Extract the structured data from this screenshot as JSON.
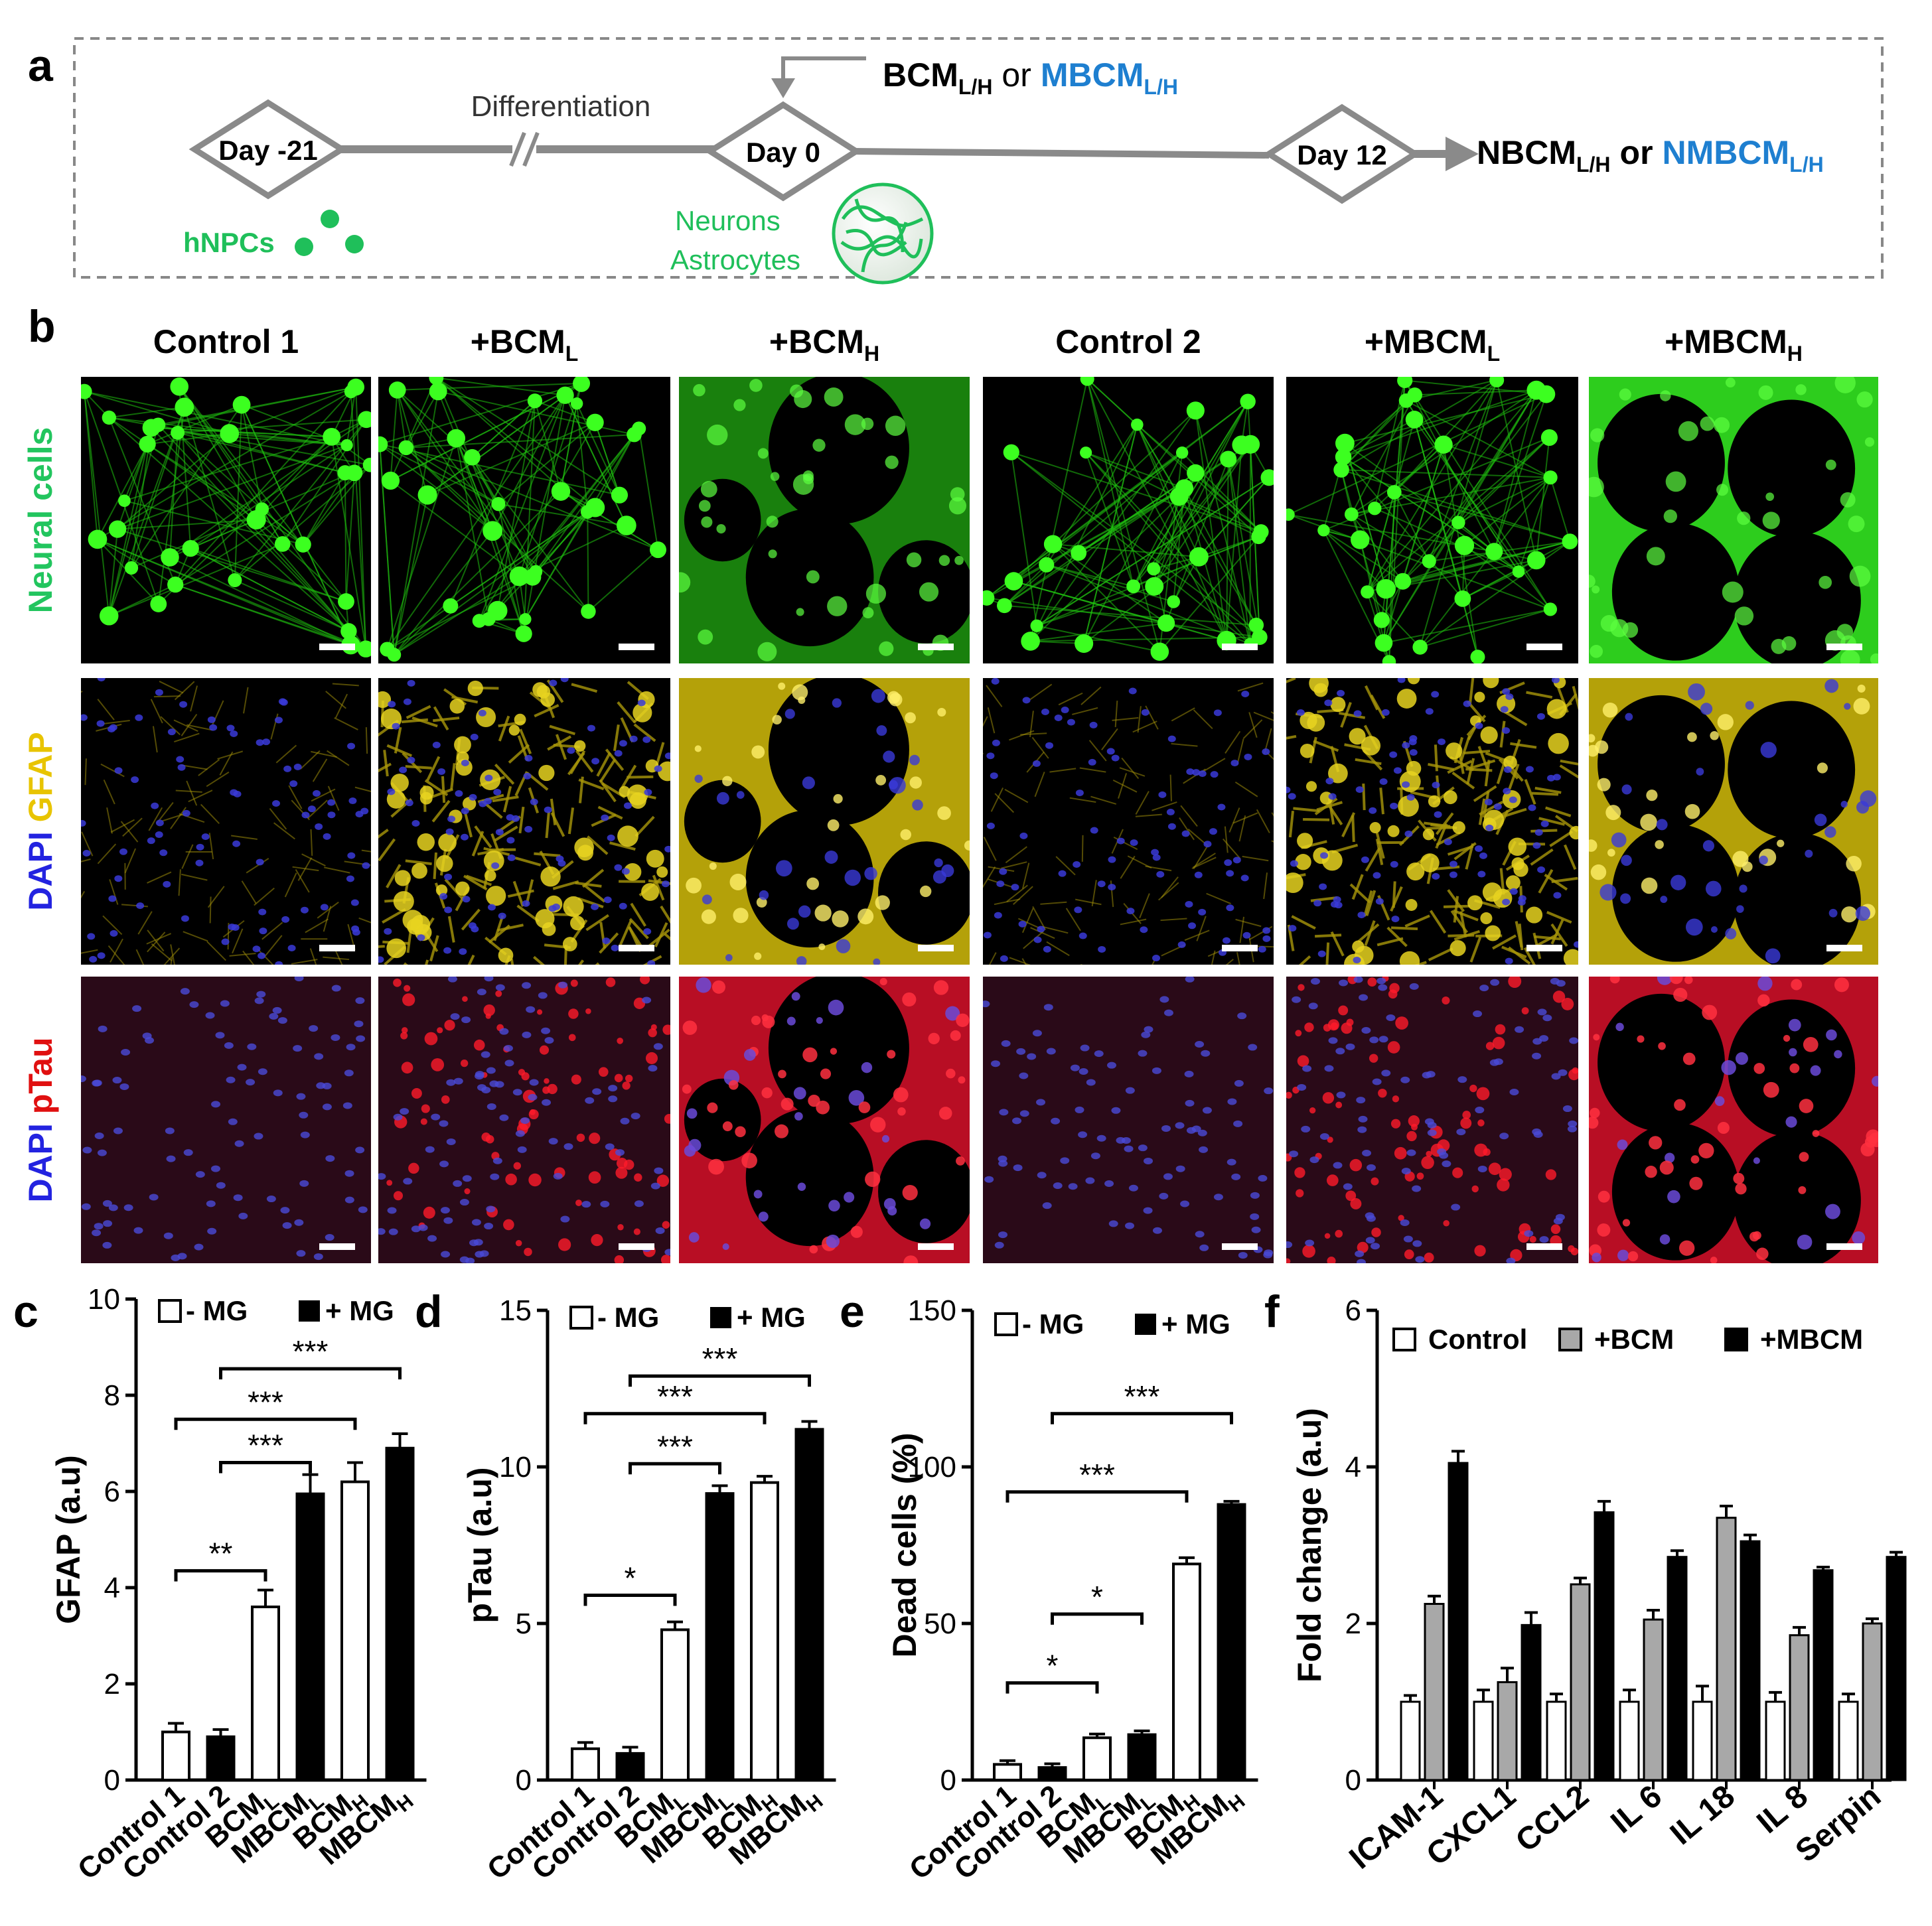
{
  "panel_labels": {
    "a": "a",
    "b": "b",
    "c": "c",
    "d": "d",
    "e": "e",
    "f": "f"
  },
  "timeline": {
    "day_start": "Day -21",
    "day_zero": "Day 0",
    "day_end": "Day 12",
    "differentiation": "Differentiation",
    "treatment_main": "BCM",
    "treatment_sub": "L/H",
    "treatment_or": "or",
    "treatment_alt_main": "MBCM",
    "treatment_alt_sub": "L/H",
    "output_main": "NBCM",
    "output_sub": "L/H",
    "output_or": "or",
    "output_alt_main": "NMBCM",
    "output_alt_sub": "L/H",
    "hnpcs": "hNPCs",
    "neurons": "Neurons",
    "astrocytes": "Astrocytes"
  },
  "micrographs": {
    "columns": [
      {
        "main": "Control 1",
        "sub": ""
      },
      {
        "main": "+BCM",
        "sub": "L"
      },
      {
        "main": "+BCM",
        "sub": "H"
      },
      {
        "main": "Control 2",
        "sub": ""
      },
      {
        "main": "+MBCM",
        "sub": "L"
      },
      {
        "main": "+MBCM",
        "sub": "H"
      }
    ],
    "rows": [
      {
        "parts": [
          {
            "text": "Neural cells",
            "color": "#22c55e"
          }
        ]
      },
      {
        "parts": [
          {
            "text": "DAPI ",
            "color": "#2323e0"
          },
          {
            "text": "GFAP",
            "color": "#e8c400"
          }
        ]
      },
      {
        "parts": [
          {
            "text": "DAPI ",
            "color": "#2323e0"
          },
          {
            "text": "pTau",
            "color": "#e01010"
          }
        ]
      }
    ]
  },
  "chart_data": [
    {
      "panel": "c",
      "type": "bar",
      "ylabel": "GFAP (a.u)",
      "ylim": [
        0,
        10
      ],
      "yticks": [
        0,
        2,
        4,
        6,
        8,
        10
      ],
      "legend": [
        "- MG",
        "+ MG"
      ],
      "categories": [
        [
          "Control 1",
          ""
        ],
        [
          "Control 2",
          ""
        ],
        [
          "BCM",
          "L"
        ],
        [
          "MBCM",
          "L"
        ],
        [
          "BCM",
          "H"
        ],
        [
          "MBCM",
          "H"
        ]
      ],
      "values": [
        1.0,
        0.9,
        3.6,
        5.95,
        6.2,
        6.9
      ],
      "errors": [
        0.18,
        0.15,
        0.35,
        0.4,
        0.4,
        0.3
      ],
      "fills": [
        "white",
        "black",
        "white",
        "black",
        "white",
        "black"
      ],
      "significance": [
        {
          "from": 0,
          "to": 2,
          "y": 4.35,
          "label": "**"
        },
        {
          "from": 1,
          "to": 3,
          "y": 6.6,
          "label": "***"
        },
        {
          "from": 0,
          "to": 4,
          "y": 7.5,
          "label": "***"
        },
        {
          "from": 1,
          "to": 5,
          "y": 8.55,
          "label": "***"
        }
      ]
    },
    {
      "panel": "d",
      "type": "bar",
      "ylabel": "pTau (a.u)",
      "ylim": [
        0,
        15
      ],
      "yticks": [
        0,
        5,
        10,
        15
      ],
      "legend": [
        "- MG",
        "+ MG"
      ],
      "categories": [
        [
          "Control 1",
          ""
        ],
        [
          "Control 2",
          ""
        ],
        [
          "BCM",
          "L"
        ],
        [
          "MBCM",
          "L"
        ],
        [
          "BCM",
          "H"
        ],
        [
          "MBCM",
          "H"
        ]
      ],
      "values": [
        1.0,
        0.85,
        4.8,
        9.15,
        9.5,
        11.2
      ],
      "errors": [
        0.2,
        0.2,
        0.25,
        0.25,
        0.2,
        0.25
      ],
      "fills": [
        "white",
        "black",
        "white",
        "black",
        "white",
        "black"
      ],
      "significance": [
        {
          "from": 0,
          "to": 2,
          "y": 5.9,
          "label": "*"
        },
        {
          "from": 1,
          "to": 3,
          "y": 10.1,
          "label": "***"
        },
        {
          "from": 0,
          "to": 4,
          "y": 11.7,
          "label": "***"
        },
        {
          "from": 1,
          "to": 5,
          "y": 12.9,
          "label": "***"
        }
      ]
    },
    {
      "panel": "e",
      "type": "bar",
      "ylabel": "Dead cells (%)",
      "ylim": [
        0,
        150
      ],
      "yticks": [
        0,
        50,
        100,
        150
      ],
      "legend": [
        "- MG",
        "+ MG"
      ],
      "categories": [
        [
          "Control 1",
          ""
        ],
        [
          "Control 2",
          ""
        ],
        [
          "BCM",
          "L"
        ],
        [
          "MBCM",
          "L"
        ],
        [
          "BCM",
          "H"
        ],
        [
          "MBCM",
          "H"
        ]
      ],
      "values": [
        5,
        4,
        13.5,
        14.5,
        69,
        88
      ],
      "errors": [
        1.2,
        1.2,
        1.2,
        1.2,
        2,
        1
      ],
      "fills": [
        "white",
        "black",
        "white",
        "black",
        "white",
        "black"
      ],
      "significance": [
        {
          "from": 0,
          "to": 2,
          "y": 31,
          "label": "*"
        },
        {
          "from": 1,
          "to": 3,
          "y": 53,
          "label": "*"
        },
        {
          "from": 0,
          "to": 4,
          "y": 92,
          "label": "***"
        },
        {
          "from": 1,
          "to": 5,
          "y": 117,
          "label": "***"
        }
      ]
    },
    {
      "panel": "f",
      "type": "bar",
      "ylabel": "Fold change (a.u)",
      "ylim": [
        0,
        6
      ],
      "yticks": [
        0,
        2,
        4,
        6
      ],
      "legend": [
        "Control",
        "+BCM",
        "+MBCM"
      ],
      "categories": [
        "ICAM-1",
        "CXCL1",
        "CCL2",
        "IL 6",
        "IL 18",
        "IL 8",
        "Serpin"
      ],
      "series": [
        {
          "name": "Control",
          "values": [
            1.0,
            1.0,
            1.0,
            1.0,
            1.0,
            1.0,
            1.0
          ],
          "errors": [
            0.08,
            0.15,
            0.1,
            0.15,
            0.2,
            0.12,
            0.1
          ]
        },
        {
          "name": "+BCM",
          "values": [
            2.25,
            1.25,
            2.5,
            2.05,
            3.35,
            1.85,
            2.0
          ],
          "errors": [
            0.1,
            0.18,
            0.08,
            0.12,
            0.15,
            0.1,
            0.06
          ]
        },
        {
          "name": "+MBCM",
          "values": [
            4.05,
            1.98,
            3.42,
            2.85,
            3.05,
            2.68,
            2.85
          ],
          "errors": [
            0.15,
            0.16,
            0.14,
            0.08,
            0.08,
            0.04,
            0.06
          ]
        }
      ]
    }
  ]
}
